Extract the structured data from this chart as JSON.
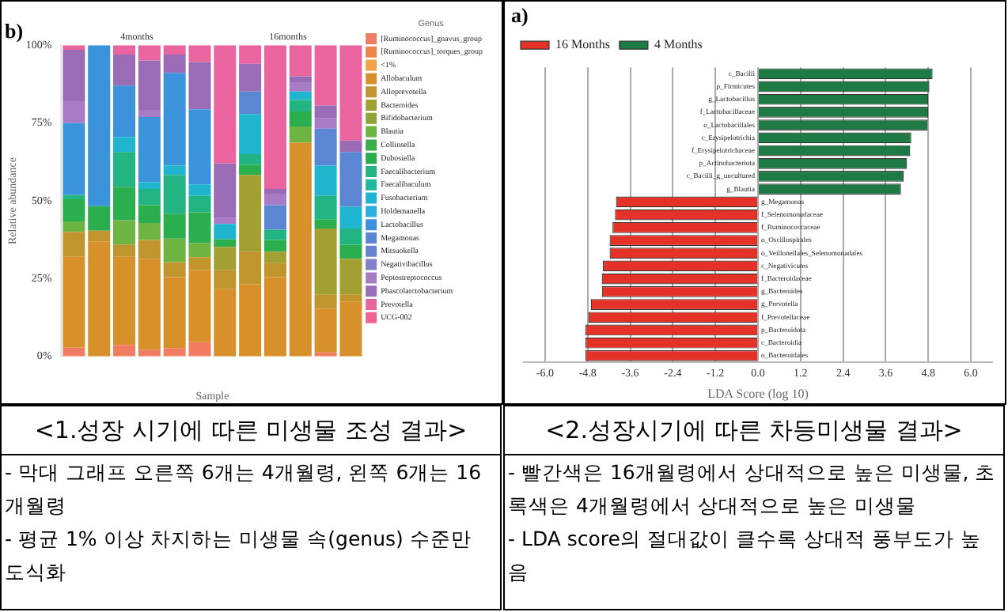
{
  "chart_data": [
    {
      "type": "bar",
      "title": "b)",
      "xlabel": "Sample",
      "ylabel": "Relative abundance",
      "legend_title": "Genus",
      "stacked": true,
      "legend": "right",
      "grid": false,
      "categories": [
        null,
        null,
        null,
        null,
        null,
        null,
        null,
        null,
        null,
        null,
        null,
        null
      ],
      "ylim": [
        0,
        100
      ],
      "yticks": [
        {
          "value": 0,
          "label": "0%"
        },
        {
          "value": 25,
          "label": "25%"
        },
        {
          "value": 50,
          "label": "50%"
        },
        {
          "value": 75,
          "label": "75%"
        },
        {
          "value": 100,
          "label": "100%"
        }
      ],
      "series": [
        {
          "name": "[Ruminococcus]_gnavus_group",
          "color": "#f07d62",
          "values": [
            2.8,
            null,
            3.7,
            2.2,
            2.7,
            4.6,
            null,
            null,
            null,
            null,
            1.3,
            null
          ]
        },
        {
          "name": "[Ruminococcus]_torques_group",
          "color": "#ec8548",
          "values": [
            null,
            null,
            null,
            null,
            null,
            null,
            null,
            null,
            null,
            null,
            null,
            null
          ]
        },
        {
          "name": "<1%",
          "color": "#eea24a",
          "values": [
            null,
            null,
            null,
            null,
            null,
            null,
            null,
            null,
            null,
            null,
            null,
            null
          ]
        },
        {
          "name": "Allobaculum",
          "color": "#d8912a",
          "values": [
            29.2,
            37.0,
            28.3,
            29.2,
            22.8,
            23.1,
            21.6,
            23.2,
            25.5,
            68.7,
            14.1,
            17.7
          ]
        },
        {
          "name": "Alloprevotella",
          "color": "#c0952e",
          "values": [
            8.0,
            3.4,
            3.9,
            6.0,
            4.8,
            4.2,
            6.1,
            10.5,
            4.5,
            null,
            4.4,
            2.1
          ]
        },
        {
          "name": "Bacteroides",
          "color": "#a3a033",
          "values": [
            null,
            null,
            null,
            null,
            null,
            null,
            7.5,
            24.6,
            3.7,
            null,
            21.3,
            11.6
          ]
        },
        {
          "name": "Bifidobacterium",
          "color": "#8fa538",
          "values": [
            null,
            null,
            null,
            null,
            null,
            null,
            null,
            null,
            null,
            null,
            null,
            null
          ]
        },
        {
          "name": "Blautia",
          "color": "#6db443",
          "values": [
            3.4,
            null,
            7.9,
            5.5,
            7.6,
            4.5,
            null,
            null,
            null,
            5.2,
            null,
            null
          ]
        },
        {
          "name": "Collinsella",
          "color": "#3aae4a",
          "values": [
            null,
            null,
            null,
            null,
            null,
            null,
            null,
            null,
            null,
            null,
            null,
            null
          ]
        },
        {
          "name": "Dubosiella",
          "color": "#2aae4e",
          "values": [
            7.1,
            7.9,
            10.7,
            5.7,
            8.0,
            9.9,
            2.5,
            3.2,
            3.7,
            4.8,
            3.0,
            4.5
          ]
        },
        {
          "name": "Faecalibacterium",
          "color": "#22b483",
          "values": [
            1.4,
            null,
            11.2,
            5.2,
            12.4,
            5.3,
            null,
            3.5,
            3.3,
            3.7,
            7.5,
            5.2
          ]
        },
        {
          "name": "Faecalibaculum",
          "color": "#20b89e",
          "values": [
            null,
            null,
            null,
            null,
            null,
            null,
            null,
            null,
            null,
            null,
            null,
            null
          ]
        },
        {
          "name": "Fusobacterium",
          "color": "#1fb5cf",
          "values": [
            null,
            null,
            4.8,
            2.2,
            3.0,
            3.7,
            4.9,
            12.9,
            null,
            2.7,
            9.7,
            7.0
          ]
        },
        {
          "name": "Holdemanella",
          "color": "#2aaedc",
          "values": [
            null,
            null,
            null,
            null,
            null,
            null,
            null,
            null,
            null,
            null,
            null,
            null
          ]
        },
        {
          "name": "Lactobacillus",
          "color": "#3b93dc",
          "values": [
            23.1,
            51.7,
            16.5,
            20.9,
            29.8,
            24.1,
            null,
            null,
            null,
            null,
            null,
            null
          ]
        },
        {
          "name": "Megamonas",
          "color": "#5b86d4",
          "values": [
            null,
            null,
            null,
            null,
            null,
            null,
            null,
            7.2,
            7.9,
            null,
            11.9,
            17.6
          ]
        },
        {
          "name": "Mitsuokella",
          "color": "#6a80cc",
          "values": [
            null,
            null,
            null,
            null,
            null,
            null,
            null,
            null,
            null,
            null,
            null,
            null
          ]
        },
        {
          "name": "Negativibacillus",
          "color": "#857ec8",
          "values": [
            null,
            null,
            null,
            null,
            null,
            null,
            null,
            null,
            null,
            null,
            null,
            null
          ]
        },
        {
          "name": "Peptostreptococcus",
          "color": "#a77cc4",
          "values": [
            7.0,
            null,
            null,
            2.3,
            null,
            null,
            1.9,
            null,
            3.7,
            3.0,
            3.3,
            null
          ]
        },
        {
          "name": "Phascolarctobacterium",
          "color": "#9a6cb6",
          "values": [
            16.5,
            null,
            10.0,
            15.9,
            5.9,
            15.2,
            17.5,
            8.9,
            1.5,
            1.9,
            4.1,
            3.7
          ]
        },
        {
          "name": "Prevotella",
          "color": "#ea64a0",
          "values": [
            1.5,
            null,
            3.0,
            4.9,
            3.0,
            5.4,
            38.0,
            6.0,
            46.2,
            10.0,
            19.4,
            30.6
          ]
        },
        {
          "name": "UCG-002",
          "color": "#ef6492",
          "values": [
            null,
            null,
            null,
            null,
            null,
            null,
            null,
            null,
            null,
            null,
            null,
            null
          ]
        }
      ],
      "annotations": [
        {
          "text": "4months"
        },
        {
          "text": "16months"
        },
        "<1.성장 시기에 따른 미생물 조성 결과>",
        "- 막대 그래프 오른쪽 6개는 4개월령, 왼쪽 6개는 16개월령",
        "- 평균 1% 이상 차지하는 미생물 속(genus) 수준만 도식화"
      ]
    },
    {
      "type": "bar",
      "title": "a)",
      "xlabel": "LDA Score (log 10)",
      "orientation": "horizontal",
      "legend": "top left",
      "grid": "x",
      "categories": [
        "c_Bacilli",
        "p_Firmicutes",
        "g_Lactobacillus",
        "f_Lactobacillaceae",
        "o_Lactobacillales",
        "c_Erysipelotrichia",
        "f_Erysipelotrichaceae",
        "p_Actinobacteriota",
        "c_Bacilli_g_uncultured",
        "g_Blautia",
        "g_Megamonas",
        "f_Selenomonadaceae",
        "f_Ruminococcaceae",
        "o_Oscillospirales",
        "o_Veillonellales_Selenomonadales",
        "c_Negativicutes",
        "f_Bacteroidaceae",
        "g_Bacteroides",
        "g_Prevotella",
        "f_Prevotellaceae",
        "p_Bacteroidota",
        "c_Bacteroidia",
        "o_Bacteroidales"
      ],
      "xlim": [
        -6.6,
        6.6
      ],
      "xticks": [
        {
          "value": -6,
          "label": "-6.0"
        },
        {
          "value": -4.8,
          "label": "-4.8"
        },
        {
          "value": -3.6,
          "label": "-3.6"
        },
        {
          "value": -2.4,
          "label": "-2.4"
        },
        {
          "value": -1.2,
          "label": "-1.2"
        },
        {
          "value": 0,
          "label": "0.0"
        },
        {
          "value": 1.2,
          "label": "1.2"
        },
        {
          "value": 2.4,
          "label": "2.4"
        },
        {
          "value": 3.6,
          "label": "3.6"
        },
        {
          "value": 4.8,
          "label": "4.8"
        },
        {
          "value": 6,
          "label": "6.0"
        }
      ],
      "series": [
        {
          "name": "16 Months",
          "color": "#e53228",
          "values": [
            null,
            null,
            null,
            null,
            null,
            null,
            null,
            null,
            null,
            null,
            -4.0,
            -4.03,
            -4.1,
            -4.18,
            -4.18,
            -4.37,
            -4.4,
            -4.4,
            -4.71,
            -4.78,
            -4.86,
            -4.86,
            -4.86
          ]
        },
        {
          "name": "4 Months",
          "color": "#1e7a45",
          "values": [
            4.92,
            4.83,
            4.8,
            4.8,
            4.78,
            4.32,
            4.29,
            4.2,
            4.11,
            4.03,
            null,
            null,
            null,
            null,
            null,
            null,
            null,
            null,
            null,
            null,
            null,
            null,
            null
          ]
        }
      ],
      "annotations": [
        "<2.성장시기에 따른 차등미생물 결과>",
        "- 빨간색은 16개월령에서 상대적으로 높은 미생물, 초록색은 4개월령에서 상대적으로 높은 미생물",
        "- LDA score의 절대값이 클수록 상대적 풍부도가 높음"
      ]
    }
  ]
}
